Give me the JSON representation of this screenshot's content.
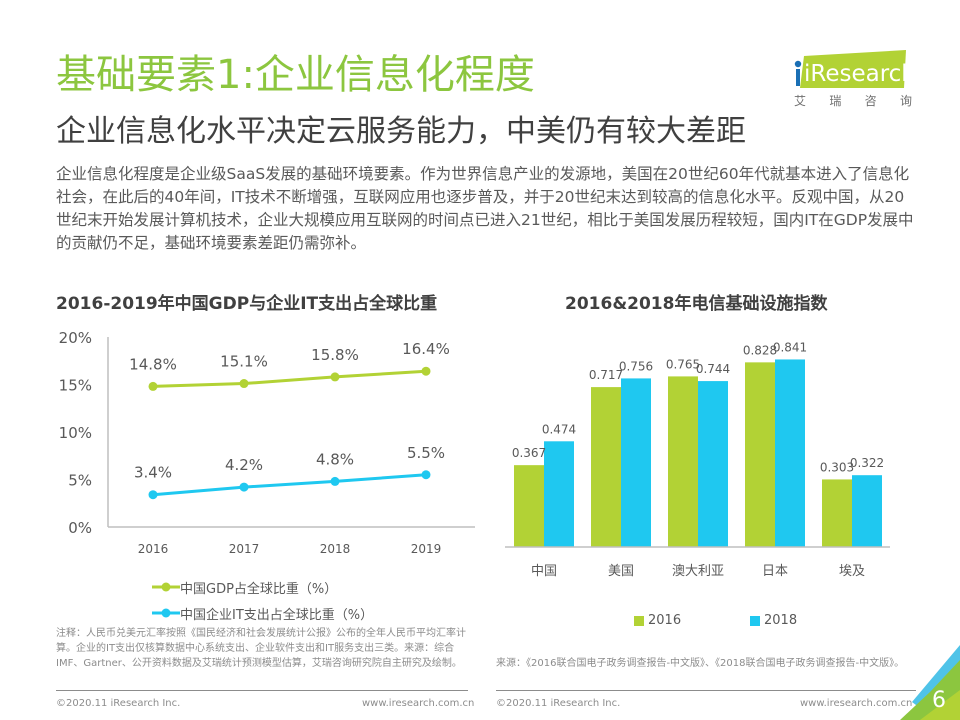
{
  "header": {
    "title": "基础要素1:企业信息化程度",
    "subtitle": "企业信息化水平决定云服务能力，中美仍有较大差距",
    "logo_text": "iResearch",
    "logo_cn": [
      "艾",
      "瑞",
      "咨",
      "询"
    ]
  },
  "body_text": "企业信息化程度是企业级SaaS发展的基础环境要素。作为世界信息产业的发源地，美国在20世纪60年代就基本进入了信息化社会，在此后的40年间，IT技术不断增强，互联网应用也逐步普及，并于20世纪末达到较高的信息化水平。反观中国，从20世纪末开始发展计算机技术，企业大规模应用互联网的时间点已进入21世纪，相比于美国发展历程较短，国内IT在GDP发展中的贡献仍不足，基础环境要素差距仍需弥补。",
  "colors": {
    "green": "#b2d235",
    "blue": "#1fc8f0",
    "title_green": "#8cc63f",
    "text_gray": "#595959"
  },
  "chart_data": [
    {
      "type": "line",
      "title": "2016-2019年中国GDP与企业IT支出占全球比重",
      "x": [
        "2016",
        "2017",
        "2018",
        "2019"
      ],
      "series": [
        {
          "name": "中国GDP占全球比重（%）",
          "values": [
            14.8,
            15.1,
            15.8,
            16.4
          ],
          "labels": [
            "14.8%",
            "15.1%",
            "15.8%",
            "16.4%"
          ],
          "color": "#b2d235"
        },
        {
          "name": "中国企业IT支出占全球比重（%）",
          "values": [
            3.4,
            4.2,
            4.8,
            5.5
          ],
          "labels": [
            "3.4%",
            "4.2%",
            "4.8%",
            "5.5%"
          ],
          "color": "#1fc8f0"
        }
      ],
      "yticks": [
        "0%",
        "5%",
        "10%",
        "15%",
        "20%"
      ],
      "ytick_values": [
        0,
        5,
        10,
        15,
        20
      ],
      "ylim": [
        0,
        20
      ],
      "xlabel": "",
      "ylabel": "",
      "grid": false,
      "legend": "bottom"
    },
    {
      "type": "bar",
      "title": "2016&2018年电信基础设施指数",
      "categories": [
        "中国",
        "美国",
        "澳大利亚",
        "日本",
        "埃及"
      ],
      "series": [
        {
          "name": "2016",
          "values": [
            0.367,
            0.717,
            0.765,
            0.828,
            0.303
          ],
          "labels": [
            "0.367",
            "0.717",
            "0.765",
            "0.828",
            "0.303"
          ],
          "color": "#b2d235"
        },
        {
          "name": "2018",
          "values": [
            0.474,
            0.756,
            0.744,
            0.841,
            0.322
          ],
          "labels": [
            "0.474",
            "0.756",
            "0.744",
            "0.841",
            "0.322"
          ],
          "color": "#1fc8f0"
        }
      ],
      "ylim": [
        0,
        0.9
      ],
      "xlabel": "",
      "ylabel": "",
      "grid": false,
      "legend": "bottom"
    }
  ],
  "notes": {
    "left": "注释：人民币兑美元汇率按照《国民经济和社会发展统计公报》公布的全年人民币平均汇率计算。企业的IT支出仅核算数据中心系统支出、企业软件支出和IT服务支出三类。来源：综合IMF、Gartner、公开资料数据及艾瑞统计预测模型估算，艾瑞咨询研究院自主研究及绘制。",
    "right": "来源：《2016联合国电子政务调查报告-中文版》、《2018联合国电子政务调查报告-中文版》。"
  },
  "footer": {
    "copyright": "©2020.11 iResearch Inc.",
    "website": "www.iresearch.com.cn",
    "page_number": "6"
  }
}
